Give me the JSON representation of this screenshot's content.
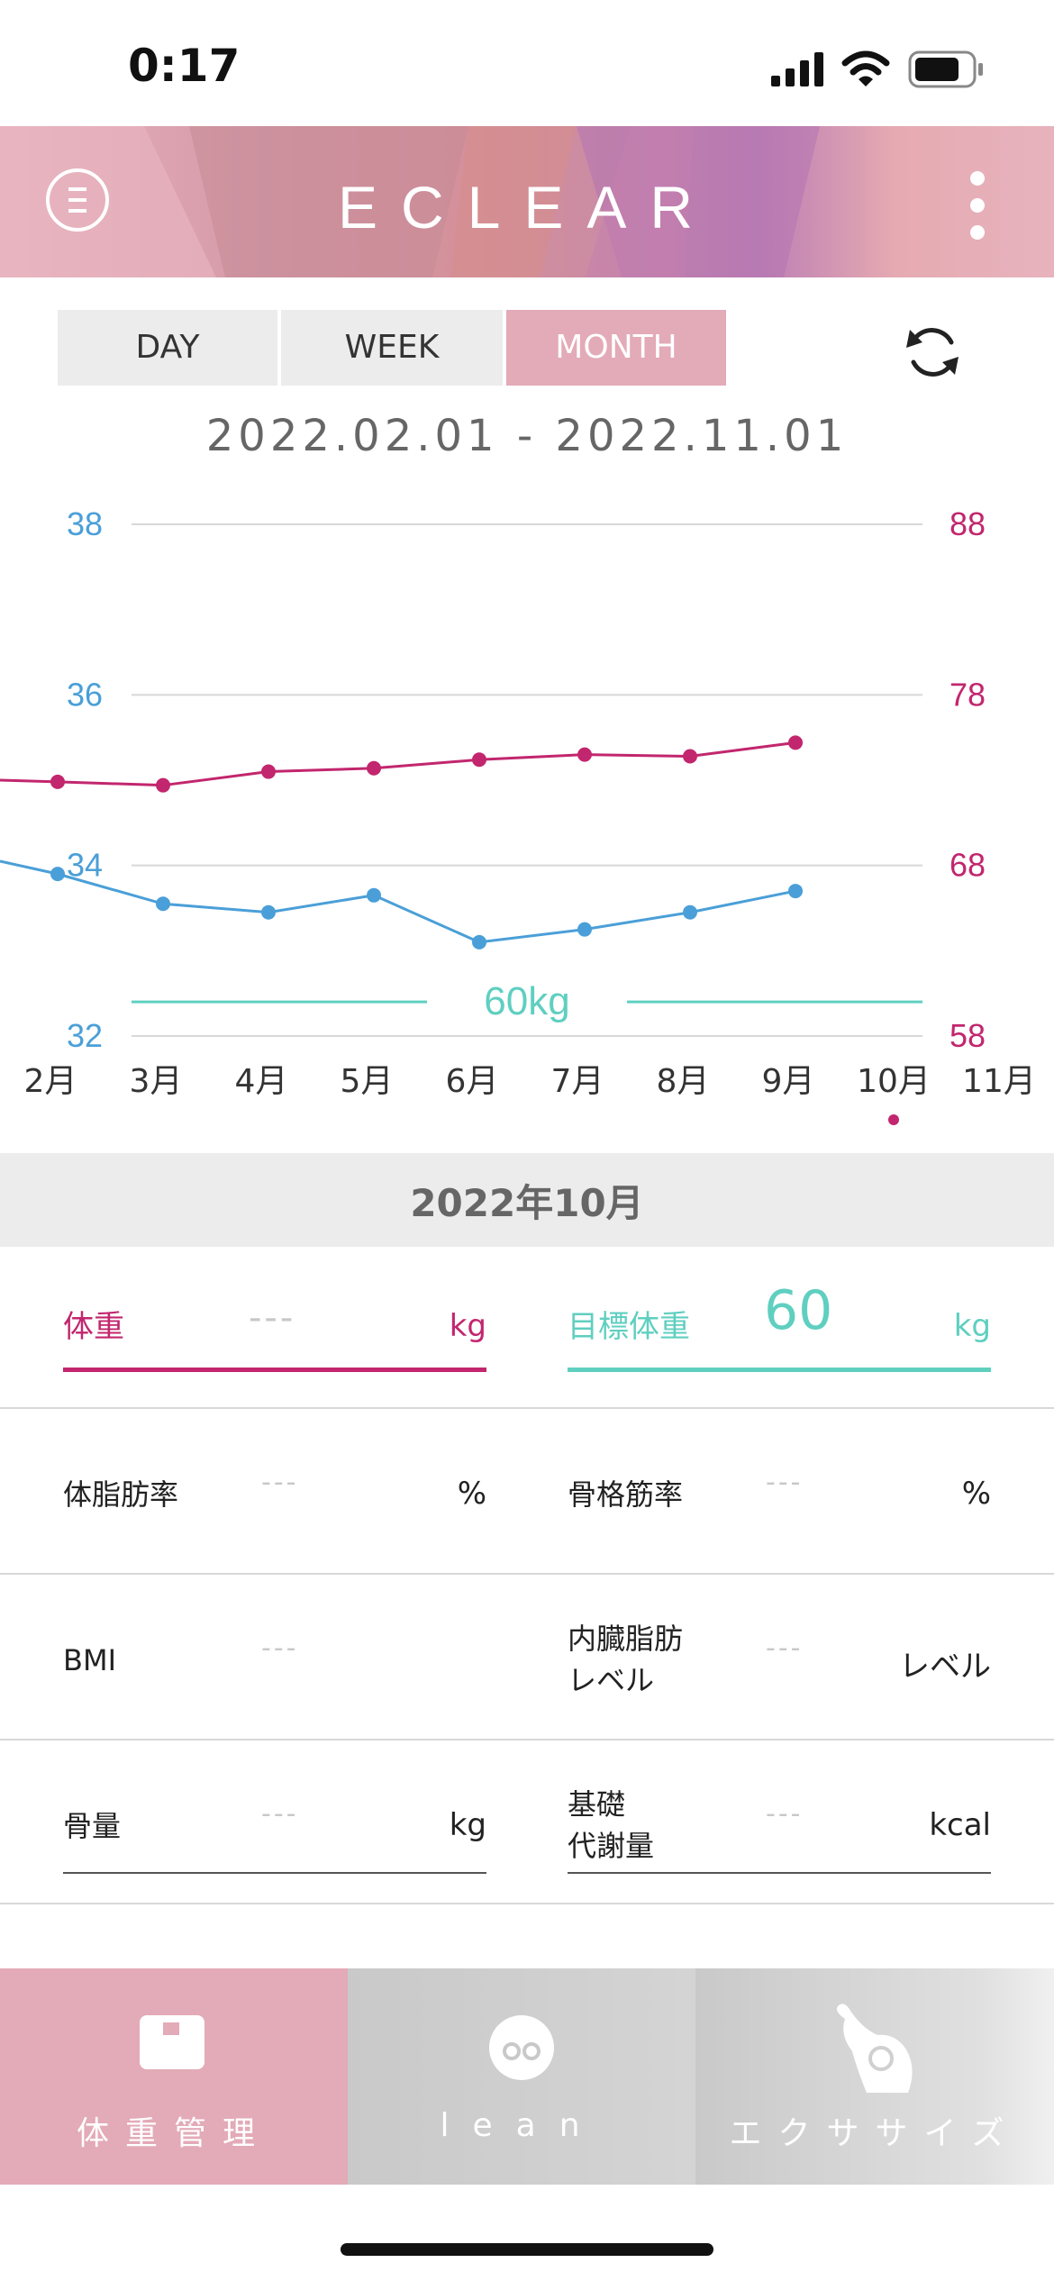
{
  "status_bar": {
    "time": "0:17"
  },
  "header": {
    "logo": "ECLEAR"
  },
  "period_tabs": [
    {
      "label": "DAY",
      "active": false
    },
    {
      "label": "WEEK",
      "active": false
    },
    {
      "label": "MONTH",
      "active": true
    }
  ],
  "date_range": "2022.02.01 - 2022.11.01",
  "chart_data": {
    "type": "line",
    "categories": [
      "2月",
      "3月",
      "4月",
      "5月",
      "6月",
      "7月",
      "8月",
      "9月",
      "10月",
      "11月"
    ],
    "left_axis": {
      "ticks": [
        "38",
        "36",
        "34",
        "32"
      ],
      "range": [
        32,
        38
      ],
      "color": "#4a9fd8"
    },
    "right_axis": {
      "ticks": [
        "88",
        "78",
        "68",
        "58"
      ],
      "range": [
        58,
        88
      ],
      "color": "#c2266e"
    },
    "series": [
      {
        "axis": "right",
        "color": "#c2266e",
        "values": [
          72.9,
          72.7,
          73.5,
          73.7,
          74.2,
          74.5,
          74.4,
          75.2,
          null,
          null
        ],
        "lead_in": 73.0
      },
      {
        "axis": "left",
        "color": "#4a9fd8",
        "values": [
          33.9,
          33.55,
          33.45,
          33.65,
          33.1,
          33.25,
          33.45,
          33.7,
          null,
          null
        ],
        "lead_in": 34.05
      }
    ],
    "target_line": {
      "label": "60kg",
      "value": 60,
      "axis": "right",
      "color": "#5fcfc0"
    },
    "current_marker": {
      "category": "10月",
      "color": "#c2266e"
    },
    "grid": true
  },
  "month_label": "2022年10月",
  "weight": {
    "label": "体重",
    "value": "---",
    "unit": "kg"
  },
  "target_weight": {
    "label": "目標体重",
    "value": "60",
    "unit": "kg"
  },
  "metrics": [
    {
      "label": "体脂肪率",
      "value": "---",
      "unit": "%"
    },
    {
      "label": "骨格筋率",
      "value": "---",
      "unit": "%"
    },
    {
      "label": "BMI",
      "value": "---",
      "unit": ""
    },
    {
      "label": "内臓脂肪\nレベル",
      "value": "---",
      "unit": "レベル"
    },
    {
      "label": "骨量",
      "value": "---",
      "unit": "kg"
    },
    {
      "label": "基礎\n代謝量",
      "value": "---",
      "unit": "kcal"
    }
  ],
  "bottom_nav": [
    {
      "label": "体重管理",
      "icon": "scale-icon",
      "active": true
    },
    {
      "label": "lean",
      "icon": "lean-face-icon",
      "active": false
    },
    {
      "label": "エクササイズ",
      "icon": "exercise-hand-icon",
      "active": false
    }
  ],
  "colors": {
    "accent_pink": "#e3aab7",
    "weight_magenta": "#c2266e",
    "target_teal": "#5fcfc0",
    "fat_blue": "#4a9fd8"
  }
}
